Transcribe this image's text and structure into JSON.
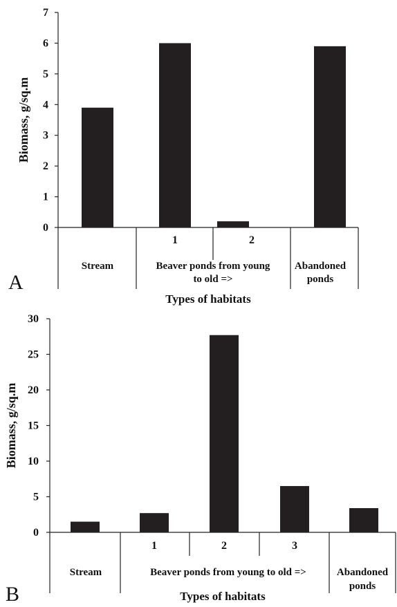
{
  "colors": {
    "bar": "#231f20",
    "axis": "#222222",
    "text": "#111111"
  },
  "chart_data": [
    {
      "type": "bar",
      "panel_label": "A",
      "ylabel": "Biomass, g/sq.m",
      "xlabel": "Types of habitats",
      "ylim": [
        0,
        7
      ],
      "yticks": [
        "0",
        "1",
        "2",
        "3",
        "4",
        "5",
        "6",
        "7"
      ],
      "categories": [
        "Stream",
        "1",
        "2",
        "Abandoned ponds"
      ],
      "values": [
        3.9,
        6.0,
        0.2,
        5.9
      ],
      "sub_labels": [
        "1",
        "2"
      ],
      "groups": [
        {
          "lines": [
            "Stream"
          ]
        },
        {
          "lines": [
            "Beaver ponds from young",
            "to old =>"
          ]
        },
        {
          "lines": [
            "Abandoned",
            "ponds"
          ]
        }
      ],
      "grid": false
    },
    {
      "type": "bar",
      "panel_label": "B",
      "ylabel": "Biomass, g/sq.m",
      "xlabel": "Types of habitats",
      "ylim": [
        0,
        30
      ],
      "yticks": [
        "0",
        "5",
        "10",
        "15",
        "20",
        "25",
        "30"
      ],
      "categories": [
        "Stream",
        "1",
        "2",
        "3",
        "Abandoned ponds"
      ],
      "values": [
        1.5,
        2.7,
        27.7,
        6.5,
        3.4
      ],
      "sub_labels": [
        "1",
        "2",
        "3"
      ],
      "groups": [
        {
          "lines": [
            "Stream"
          ]
        },
        {
          "lines": [
            "Beaver ponds from young to old =>"
          ]
        },
        {
          "lines": [
            "Abandoned",
            "ponds"
          ]
        }
      ],
      "grid": false
    }
  ]
}
